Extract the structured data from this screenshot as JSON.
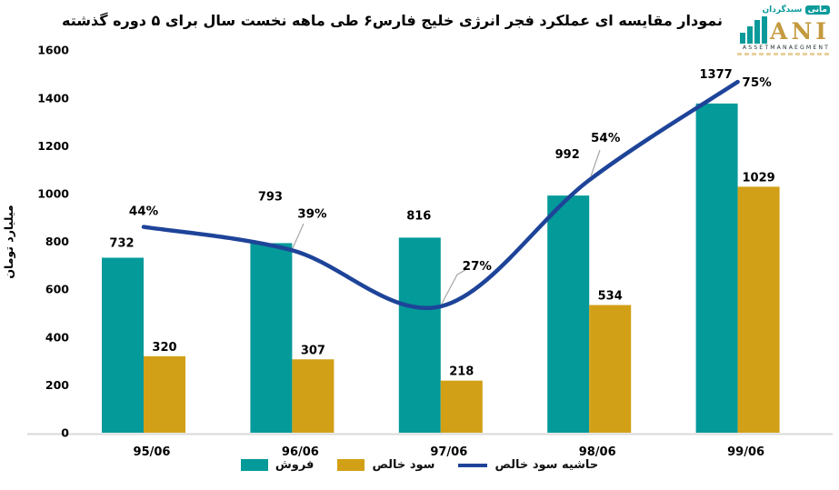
{
  "title": "نمودار مقایسه ای عملکرد فجر انرژی خلیج فارس۶ طی ماهه نخست سال برای ۵ دوره گذشته",
  "logo": {
    "name_fa_prefix": "سبدگردان",
    "name_fa_boxed": "مانی",
    "name_en": "ANI",
    "subtitle": "ASSETMANAEGMENT"
  },
  "chart_data": {
    "type": "bar",
    "categories": [
      "95/06",
      "96/06",
      "97/06",
      "98/06",
      "99/06"
    ],
    "series": [
      {
        "name": "فروش",
        "kind": "bar",
        "color": "#049a9a",
        "values": [
          732,
          793,
          816,
          992,
          1377
        ]
      },
      {
        "name": "سود خالص",
        "kind": "bar",
        "color": "#d2a017",
        "values": [
          320,
          307,
          218,
          534,
          1029
        ]
      },
      {
        "name": "حاشیه سود خالص",
        "kind": "line",
        "color": "#1e4499",
        "values": [
          44,
          39,
          27,
          54,
          75
        ],
        "labels": [
          "44%",
          "39%",
          "27%",
          "54%",
          "75%"
        ]
      }
    ],
    "ylabel": "میلیارد تومان",
    "y_ticks": [
      0,
      200,
      400,
      600,
      800,
      1000,
      1200,
      1400,
      1600
    ],
    "ylim": [
      0,
      1600
    ],
    "secondary_line_axis_pct": true,
    "grid": false,
    "legend_position": "bottom",
    "colors": {
      "axis_text": "#000000",
      "baseline": "#d9d9d9",
      "leader": "#a6a6a6",
      "label_text": "#000000"
    }
  }
}
